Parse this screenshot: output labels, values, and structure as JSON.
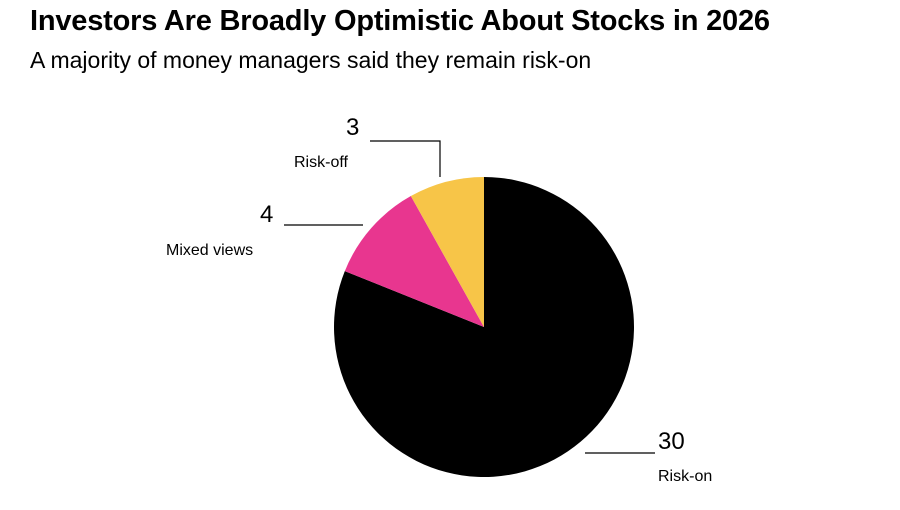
{
  "chart_data": {
    "type": "pie",
    "title": "Investors Are Broadly Optimistic About Stocks in 2026",
    "subtitle": "A majority of money managers said they remain risk-on",
    "slices": [
      {
        "label": "Risk-on",
        "value": 30,
        "color": "#000000"
      },
      {
        "label": "Mixed views",
        "value": 4,
        "color": "#e8368f"
      },
      {
        "label": "Risk-off",
        "value": 3,
        "color": "#f7c548"
      }
    ],
    "start": "12 o'clock",
    "direction": "clockwise"
  }
}
